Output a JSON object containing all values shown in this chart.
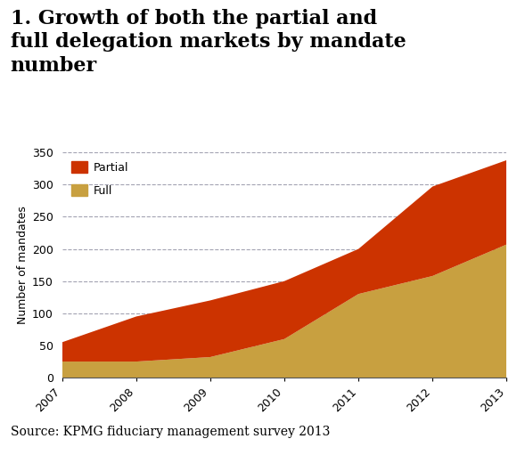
{
  "years": [
    2007,
    2008,
    2009,
    2010,
    2011,
    2012,
    2013
  ],
  "full_values": [
    25,
    25,
    32,
    60,
    130,
    158,
    207
  ],
  "total_values": [
    55,
    95,
    120,
    150,
    200,
    297,
    338
  ],
  "partial_color": "#cc3300",
  "full_color": "#c8a040",
  "background_color": "#ffffff",
  "grid_color": "#9999aa",
  "title": "1. Growth of both the partial and\nfull delegation markets by mandate\nnumber",
  "ylabel": "Number of mandates",
  "source_text": "Source: KPMG fiduciary management survey 2013",
  "ylim": [
    0,
    350
  ],
  "yticks": [
    0,
    50,
    100,
    150,
    200,
    250,
    300,
    350
  ],
  "legend_partial": "Partial",
  "legend_full": "Full",
  "title_fontsize": 16,
  "label_fontsize": 9,
  "tick_fontsize": 9,
  "source_fontsize": 10
}
